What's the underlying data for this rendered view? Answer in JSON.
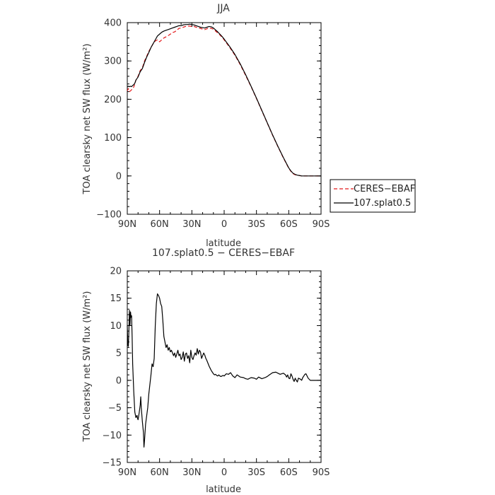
{
  "chart_data": [
    {
      "type": "line",
      "title": "JJA",
      "xlabel": "latitude",
      "ylabel": "TOA clearsky net SW flux (W/m²)",
      "xlim": [
        90,
        -90
      ],
      "ylim": [
        -100,
        400
      ],
      "x_ticks": [
        90,
        60,
        30,
        0,
        -30,
        -60,
        -90
      ],
      "x_tick_labels": [
        "90N",
        "60N",
        "30N",
        "0",
        "30S",
        "60S",
        "90S"
      ],
      "y_ticks": [
        -100,
        0,
        100,
        200,
        300,
        400
      ],
      "y_tick_labels": [
        "−100",
        "0",
        "100",
        "200",
        "300",
        "400"
      ],
      "legend": {
        "placement": "right",
        "entries": [
          "CERES−EBAF",
          "107.splat0.5"
        ]
      },
      "series": [
        {
          "name": "CERES−EBAF",
          "color": "#e41a1c",
          "dash": "dashed",
          "x": [
            90,
            89,
            88,
            87,
            86,
            85,
            84,
            83,
            82,
            80,
            78,
            76,
            74,
            72,
            70,
            68,
            66,
            64,
            62,
            60,
            58,
            56,
            54,
            52,
            50,
            48,
            46,
            44,
            42,
            40,
            38,
            36,
            34,
            32,
            30,
            28,
            26,
            24,
            22,
            20,
            18,
            16,
            14,
            12,
            10,
            8,
            6,
            4,
            2,
            0,
            -5,
            -10,
            -15,
            -20,
            -25,
            -30,
            -35,
            -40,
            -45,
            -50,
            -55,
            -60,
            -62,
            -64,
            -66,
            -68,
            -70,
            -72,
            -75,
            -80,
            -85,
            -90
          ],
          "y": [
            222,
            228,
            220,
            222,
            225,
            228,
            232,
            240,
            250,
            260,
            275,
            282,
            300,
            312,
            325,
            335,
            345,
            352,
            355,
            350,
            355,
            360,
            363,
            366,
            370,
            374,
            376,
            380,
            385,
            386,
            388,
            390,
            391,
            391,
            390,
            390,
            388,
            386,
            385,
            383,
            382,
            384,
            386,
            385,
            383,
            378,
            373,
            368,
            362,
            355,
            336,
            315,
            290,
            262,
            233,
            202,
            170,
            138,
            106,
            76,
            47,
            20,
            12,
            6,
            3,
            2,
            1,
            0,
            0,
            0,
            0,
            0
          ]
        },
        {
          "name": "107.splat0.5",
          "color": "#000000",
          "dash": "solid",
          "x": [
            90,
            89,
            88,
            87,
            86,
            85,
            84,
            83,
            82,
            80,
            78,
            76,
            74,
            72,
            70,
            68,
            66,
            64,
            62,
            60,
            58,
            56,
            54,
            52,
            50,
            48,
            46,
            44,
            42,
            40,
            38,
            36,
            34,
            32,
            30,
            28,
            26,
            24,
            22,
            20,
            18,
            16,
            14,
            12,
            10,
            8,
            6,
            4,
            2,
            0,
            -5,
            -10,
            -15,
            -20,
            -25,
            -30,
            -35,
            -40,
            -45,
            -50,
            -55,
            -60,
            -62,
            -64,
            -66,
            -68,
            -70,
            -72,
            -75,
            -80,
            -85,
            -90
          ],
          "y": [
            232,
            234,
            233,
            234,
            233,
            236,
            238,
            242,
            250,
            258,
            272,
            280,
            296,
            310,
            322,
            335,
            345,
            355,
            365,
            370,
            375,
            378,
            380,
            382,
            384,
            386,
            388,
            390,
            392,
            392,
            394,
            395,
            395,
            396,
            395,
            394,
            392,
            390,
            388,
            387,
            386,
            388,
            390,
            389,
            386,
            381,
            376,
            370,
            364,
            357,
            338,
            317,
            292,
            264,
            234,
            203,
            171,
            139,
            107,
            77,
            48,
            21,
            13,
            7,
            4,
            2,
            1,
            0,
            0,
            0,
            0,
            0
          ]
        }
      ]
    },
    {
      "type": "line",
      "title": "107.splat0.5 − CERES−EBAF",
      "xlabel": "latitude",
      "ylabel": "TOA clearsky net SW flux (W/m²)",
      "xlim": [
        90,
        -90
      ],
      "ylim": [
        -15,
        20
      ],
      "x_ticks": [
        90,
        60,
        30,
        0,
        -30,
        -60,
        -90
      ],
      "x_tick_labels": [
        "90N",
        "60N",
        "30N",
        "0",
        "30S",
        "60S",
        "90S"
      ],
      "y_ticks": [
        -15,
        -10,
        -5,
        0,
        5,
        10,
        15,
        20
      ],
      "y_tick_labels": [
        "−15",
        "−10",
        "−5",
        "0",
        "5",
        "10",
        "15",
        "20"
      ],
      "series": [
        {
          "color": "#000000",
          "dash": "solid",
          "x": [
            90,
            89.5,
            89,
            88.5,
            88,
            87.5,
            87,
            86.5,
            86,
            85.5,
            85,
            84,
            83,
            82,
            81,
            80.5,
            80,
            79,
            78,
            77.5,
            77,
            76,
            75,
            74.5,
            74,
            73,
            72,
            71,
            70,
            68,
            67,
            66,
            65,
            64,
            63,
            62,
            61,
            60,
            59.5,
            59,
            58,
            57,
            56,
            55,
            54,
            53,
            52,
            51,
            50,
            49,
            48,
            47,
            46,
            45,
            44,
            43,
            42,
            41,
            40,
            39,
            38,
            37,
            36,
            35,
            34,
            33,
            32,
            31,
            30,
            29,
            28,
            27,
            26,
            25,
            24,
            23,
            22,
            21,
            20,
            19,
            18,
            17,
            16,
            15,
            14,
            13,
            12,
            11,
            10,
            9,
            8,
            7,
            6,
            5,
            4,
            3,
            2,
            1,
            0,
            -2,
            -4,
            -6,
            -8,
            -10,
            -12,
            -15,
            -18,
            -20,
            -22,
            -25,
            -28,
            -30,
            -32,
            -35,
            -38,
            -40,
            -42,
            -45,
            -48,
            -50,
            -52,
            -55,
            -57,
            -58,
            -59,
            -60,
            -61,
            -62,
            -63,
            -64,
            -65,
            -66,
            -67,
            -68,
            -69,
            -70,
            -71,
            -72,
            -73,
            -74,
            -75,
            -76,
            -77,
            -78,
            -80,
            -82,
            -84,
            -86,
            -88,
            -90
          ],
          "y": [
            10,
            6.5,
            6.2,
            9,
            12.8,
            10,
            12.5,
            11.5,
            11.8,
            8,
            3,
            -2,
            -5.8,
            -6.8,
            -6.4,
            -6.9,
            -7.2,
            -6,
            -4.5,
            -3,
            -5,
            -7.5,
            -9.5,
            -12.2,
            -11,
            -8,
            -6.5,
            -5,
            -2.5,
            1,
            3,
            2.5,
            4,
            10,
            14,
            15.8,
            15.5,
            15,
            14.5,
            14,
            13.5,
            11,
            8,
            7,
            6,
            6.5,
            5.5,
            6,
            5.2,
            5.5,
            5,
            4.5,
            5,
            4.2,
            4.8,
            5.5,
            4.5,
            4.8,
            3.8,
            4.2,
            5.2,
            3.5,
            4.8,
            5,
            4,
            4.5,
            3.2,
            5.5,
            4.2,
            3.8,
            4.5,
            5,
            4.6,
            5.8,
            4.8,
            5.5,
            5.2,
            4,
            4.5,
            5,
            4.6,
            4,
            3.6,
            3.1,
            2.6,
            2.2,
            1.8,
            1.5,
            1.2,
            1.0,
            1.1,
            0.9,
            0.8,
            1.0,
            0.8,
            0.7,
            0.8,
            0.9,
            0.8,
            1.2,
            1.1,
            1.4,
            0.8,
            0.5,
            1.0,
            0.6,
            0.5,
            0.3,
            0.2,
            0.5,
            0.4,
            0.2,
            0.6,
            0.3,
            0.5,
            0.7,
            1.0,
            1.4,
            1.5,
            1.3,
            1.1,
            1.3,
            1.0,
            0.6,
            1.0,
            0.4,
            0.3,
            1.2,
            0.8,
            0.2,
            -0.2,
            0.4,
            0.0,
            -0.3,
            0.4,
            0.3,
            0.2,
            0.0,
            0.5,
            0.8,
            1.1,
            1.2,
            0.8,
            0.4,
            0.0,
            0.0,
            0.0,
            0.0,
            0.0,
            0.0
          ]
        }
      ]
    }
  ]
}
